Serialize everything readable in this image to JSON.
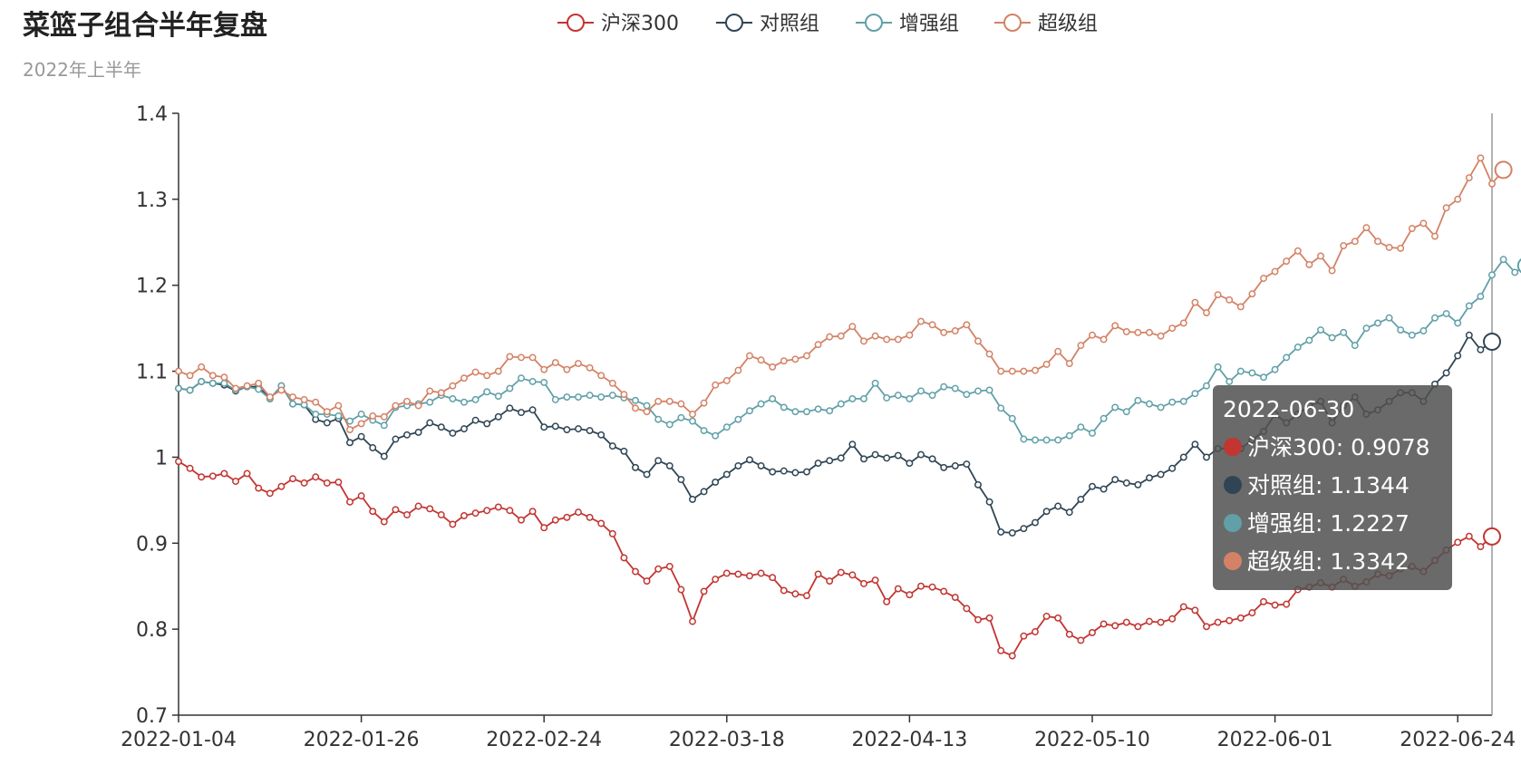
{
  "chart_data": {
    "type": "line",
    "title": "菜篮子组合半年复盘",
    "subtitle": "2022年上半年",
    "xlabel": "",
    "ylabel": "",
    "ylim": [
      0.7,
      1.4
    ],
    "yticks": [
      "0.7",
      "0.8",
      "0.9",
      "1",
      "1.1",
      "1.2",
      "1.3",
      "1.4"
    ],
    "xticks": [
      "2022-01-04",
      "2022-01-26",
      "2022-02-24",
      "2022-03-18",
      "2022-04-13",
      "2022-05-10",
      "2022-06-01",
      "2022-06-24"
    ],
    "grid": false,
    "legend_position": "top-center",
    "series": [
      {
        "name": "沪深300",
        "color": "#c23531",
        "values": [
          0.995,
          0.987,
          0.977,
          0.978,
          0.981,
          0.972,
          0.981,
          0.964,
          0.958,
          0.966,
          0.975,
          0.97,
          0.977,
          0.97,
          0.971,
          0.948,
          0.955,
          0.937,
          0.925,
          0.939,
          0.933,
          0.943,
          0.94,
          0.933,
          0.922,
          0.932,
          0.935,
          0.938,
          0.942,
          0.938,
          0.927,
          0.937,
          0.918,
          0.927,
          0.93,
          0.936,
          0.93,
          0.923,
          0.911,
          0.883,
          0.867,
          0.856,
          0.87,
          0.873,
          0.846,
          0.809,
          0.844,
          0.858,
          0.865,
          0.864,
          0.862,
          0.865,
          0.86,
          0.845,
          0.841,
          0.839,
          0.864,
          0.856,
          0.866,
          0.863,
          0.853,
          0.857,
          0.832,
          0.847,
          0.84,
          0.85,
          0.849,
          0.844,
          0.837,
          0.824,
          0.811,
          0.813,
          0.775,
          0.769,
          0.792,
          0.797,
          0.815,
          0.813,
          0.794,
          0.787,
          0.796,
          0.806,
          0.804,
          0.808,
          0.803,
          0.809,
          0.808,
          0.812,
          0.826,
          0.822,
          0.803,
          0.808,
          0.81,
          0.813,
          0.819,
          0.832,
          0.828,
          0.829,
          0.846,
          0.849,
          0.854,
          0.849,
          0.858,
          0.85,
          0.855,
          0.864,
          0.862,
          0.87,
          0.873,
          0.867,
          0.88,
          0.892,
          0.901,
          0.908,
          0.896,
          0.9078
        ]
      },
      {
        "name": "对照组",
        "color": "#2f4554",
        "values": [
          1.08,
          1.078,
          1.088,
          1.086,
          1.084,
          1.077,
          1.082,
          1.082,
          1.068,
          1.083,
          1.062,
          1.061,
          1.044,
          1.04,
          1.045,
          1.017,
          1.024,
          1.011,
          1.001,
          1.021,
          1.026,
          1.029,
          1.04,
          1.035,
          1.028,
          1.033,
          1.043,
          1.039,
          1.047,
          1.057,
          1.052,
          1.055,
          1.035,
          1.036,
          1.032,
          1.033,
          1.031,
          1.026,
          1.013,
          1.007,
          0.988,
          0.98,
          0.996,
          0.99,
          0.974,
          0.951,
          0.96,
          0.971,
          0.98,
          0.99,
          0.997,
          0.99,
          0.983,
          0.984,
          0.982,
          0.983,
          0.993,
          0.996,
          0.999,
          1.015,
          0.998,
          1.003,
          0.999,
          1.002,
          0.993,
          1.003,
          0.998,
          0.988,
          0.99,
          0.992,
          0.968,
          0.948,
          0.913,
          0.912,
          0.917,
          0.924,
          0.937,
          0.943,
          0.936,
          0.951,
          0.966,
          0.963,
          0.974,
          0.97,
          0.968,
          0.976,
          0.98,
          0.987,
          1.0,
          1.015,
          1.0,
          1.01,
          1.01,
          1.01,
          1.02,
          1.03,
          1.05,
          1.04,
          1.05,
          1.06,
          1.065,
          1.04,
          1.06,
          1.07,
          1.05,
          1.055,
          1.065,
          1.075,
          1.075,
          1.065,
          1.085,
          1.098,
          1.118,
          1.142,
          1.125,
          1.1344
        ]
      },
      {
        "name": "增强组",
        "color": "#61a0a8",
        "values": [
          1.08,
          1.078,
          1.088,
          1.086,
          1.086,
          1.078,
          1.082,
          1.079,
          1.068,
          1.083,
          1.062,
          1.061,
          1.05,
          1.05,
          1.048,
          1.042,
          1.05,
          1.043,
          1.037,
          1.058,
          1.06,
          1.062,
          1.064,
          1.072,
          1.068,
          1.064,
          1.067,
          1.076,
          1.071,
          1.08,
          1.092,
          1.088,
          1.087,
          1.067,
          1.07,
          1.07,
          1.072,
          1.07,
          1.072,
          1.069,
          1.066,
          1.06,
          1.044,
          1.038,
          1.046,
          1.042,
          1.031,
          1.025,
          1.035,
          1.044,
          1.054,
          1.062,
          1.068,
          1.058,
          1.053,
          1.053,
          1.056,
          1.054,
          1.062,
          1.068,
          1.068,
          1.086,
          1.069,
          1.072,
          1.068,
          1.077,
          1.072,
          1.082,
          1.08,
          1.073,
          1.077,
          1.078,
          1.057,
          1.045,
          1.021,
          1.02,
          1.02,
          1.02,
          1.025,
          1.035,
          1.028,
          1.045,
          1.058,
          1.053,
          1.066,
          1.062,
          1.058,
          1.064,
          1.065,
          1.074,
          1.083,
          1.105,
          1.088,
          1.1,
          1.098,
          1.093,
          1.102,
          1.116,
          1.128,
          1.136,
          1.148,
          1.139,
          1.145,
          1.13,
          1.15,
          1.156,
          1.162,
          1.148,
          1.142,
          1.147,
          1.162,
          1.167,
          1.156,
          1.176,
          1.187,
          1.212,
          1.23,
          1.215,
          1.2227
        ]
      },
      {
        "name": "超级组",
        "color": "#d48265",
        "values": [
          1.1,
          1.095,
          1.105,
          1.095,
          1.093,
          1.08,
          1.083,
          1.086,
          1.07,
          1.078,
          1.07,
          1.067,
          1.064,
          1.053,
          1.06,
          1.032,
          1.039,
          1.048,
          1.047,
          1.06,
          1.065,
          1.06,
          1.077,
          1.075,
          1.083,
          1.092,
          1.099,
          1.095,
          1.1,
          1.117,
          1.116,
          1.116,
          1.102,
          1.11,
          1.102,
          1.109,
          1.104,
          1.095,
          1.086,
          1.073,
          1.057,
          1.053,
          1.065,
          1.065,
          1.062,
          1.05,
          1.063,
          1.084,
          1.089,
          1.101,
          1.118,
          1.113,
          1.105,
          1.112,
          1.114,
          1.118,
          1.131,
          1.14,
          1.141,
          1.152,
          1.135,
          1.141,
          1.137,
          1.137,
          1.142,
          1.158,
          1.154,
          1.145,
          1.147,
          1.154,
          1.135,
          1.12,
          1.1,
          1.1,
          1.1,
          1.101,
          1.108,
          1.123,
          1.109,
          1.13,
          1.142,
          1.137,
          1.153,
          1.146,
          1.145,
          1.145,
          1.141,
          1.15,
          1.156,
          1.18,
          1.168,
          1.189,
          1.183,
          1.175,
          1.19,
          1.208,
          1.216,
          1.228,
          1.24,
          1.224,
          1.234,
          1.217,
          1.246,
          1.251,
          1.267,
          1.251,
          1.244,
          1.243,
          1.266,
          1.272,
          1.257,
          1.29,
          1.3,
          1.325,
          1.348,
          1.318,
          1.3342
        ]
      }
    ],
    "tooltip": {
      "date": "2022-06-30",
      "rows": [
        {
          "name": "沪深300",
          "value": "0.9078",
          "color": "#c23531"
        },
        {
          "name": "对照组",
          "value": "1.1344",
          "color": "#2f4554"
        },
        {
          "name": "增强组",
          "value": "1.2227",
          "color": "#61a0a8"
        },
        {
          "name": "超级组",
          "value": "1.3342",
          "color": "#d48265"
        }
      ]
    }
  }
}
